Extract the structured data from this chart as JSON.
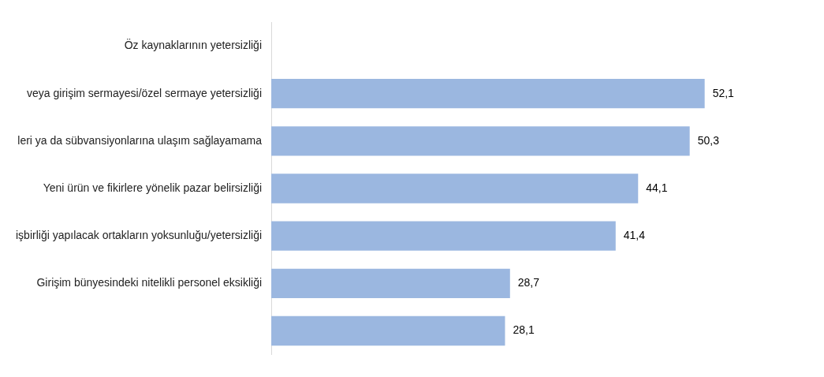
{
  "chart_data": {
    "type": "bar",
    "orientation": "horizontal",
    "categories": [
      "Öz kaynaklarının yetersizliği",
      "veya girişim sermayesi/özel sermaye yetersizliği",
      "leri ya da sübvansiyonlarına ulaşım sağlayamama",
      "Yeni ürün ve fikirlere yönelik pazar belirsizliği",
      "işbirliği yapılacak ortakların yoksunluğu/yetersizliği",
      "Girişim bünyesindeki nitelikli personel eksikliği",
      null
    ],
    "values": [
      null,
      52.1,
      50.3,
      44.1,
      41.4,
      28.7,
      28.1
    ],
    "value_labels": [
      null,
      "52,1",
      "50,3",
      "44,1",
      "41,4",
      "28,7",
      "28,1"
    ],
    "color": "#9bb7e0",
    "grid": false,
    "legend": false
  }
}
